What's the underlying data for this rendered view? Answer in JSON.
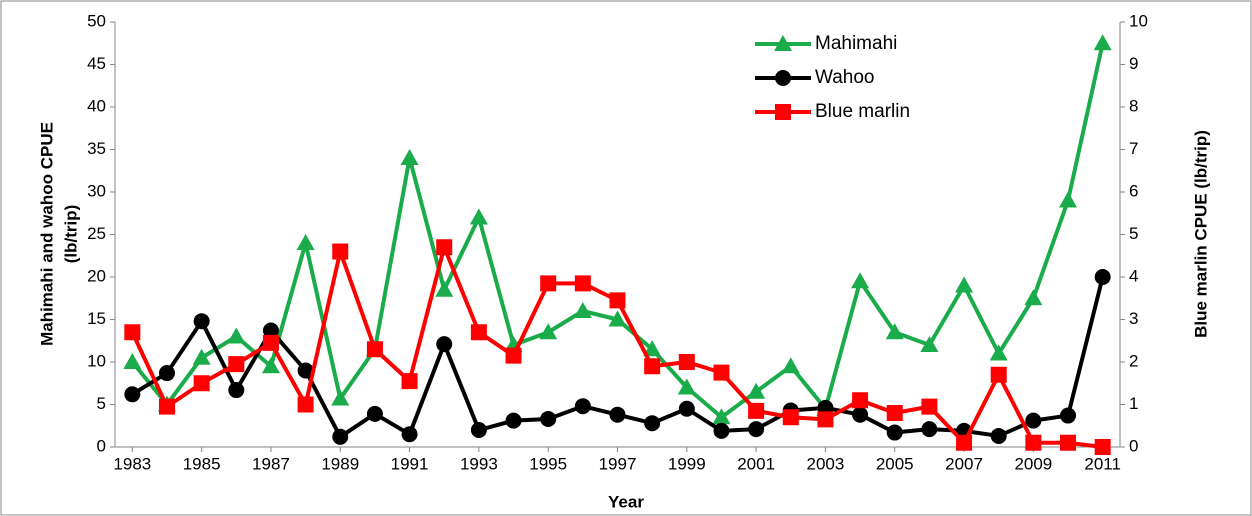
{
  "chart_data": {
    "type": "line",
    "x": [
      1983,
      1984,
      1985,
      1986,
      1987,
      1988,
      1989,
      1990,
      1991,
      1992,
      1993,
      1994,
      1995,
      1996,
      1997,
      1998,
      1999,
      2000,
      2001,
      2002,
      2003,
      2004,
      2005,
      2006,
      2007,
      2008,
      2009,
      2010,
      2011
    ],
    "xlabel": "Year",
    "ylabel": [
      "Mahimahi and wahoo CPUE",
      "(lb/trip)"
    ],
    "y2label": "Blue marlin  CPUE (lb/trip)",
    "xlim": [
      1982.5,
      2011.5
    ],
    "xticks": [
      1983,
      1985,
      1987,
      1989,
      1991,
      1993,
      1995,
      1997,
      1999,
      2001,
      2003,
      2005,
      2007,
      2009,
      2011
    ],
    "ylim": [
      0,
      50
    ],
    "yticks": [
      0,
      5,
      10,
      15,
      20,
      25,
      30,
      35,
      40,
      45,
      50
    ],
    "y2lim": [
      0,
      10
    ],
    "y2ticks": [
      0,
      1,
      2,
      3,
      4,
      5,
      6,
      7,
      8,
      9,
      10
    ],
    "legend": "top-center",
    "series": [
      {
        "name": "Mahimahi",
        "color": "#1aab4b",
        "marker": "triangle",
        "values": [
          10,
          5,
          10.5,
          13,
          9.5,
          24,
          5.7,
          11.5,
          34,
          18.5,
          27,
          12,
          13.5,
          16,
          15,
          11.5,
          7,
          3.5,
          6.5,
          9.5,
          4.5,
          19.5,
          13.5,
          12,
          19,
          11,
          17.5,
          29,
          47.5
        ]
      },
      {
        "name": "Wahoo",
        "color": "#000000",
        "marker": "circle",
        "values": [
          6.2,
          8.7,
          14.8,
          6.7,
          13.7,
          9,
          1.2,
          3.9,
          1.5,
          12.1,
          2,
          3.1,
          3.3,
          4.8,
          3.8,
          2.8,
          4.5,
          1.9,
          2.1,
          4.3,
          4.6,
          3.8,
          1.7,
          2.1,
          1.9,
          1.3,
          3.1,
          3.7,
          20
        ]
      },
      {
        "name": "Blue marlin",
        "color": "#ff0000",
        "marker": "square",
        "axis": "y2",
        "values": [
          2.7,
          0.95,
          1.5,
          1.95,
          2.45,
          1.0,
          4.6,
          2.3,
          1.55,
          4.7,
          2.7,
          2.15,
          3.85,
          3.85,
          3.45,
          1.9,
          2.0,
          1.75,
          0.85,
          0.7,
          0.65,
          1.1,
          0.8,
          0.95,
          0.1,
          1.7,
          0.1,
          0.1,
          0.0
        ]
      }
    ]
  }
}
